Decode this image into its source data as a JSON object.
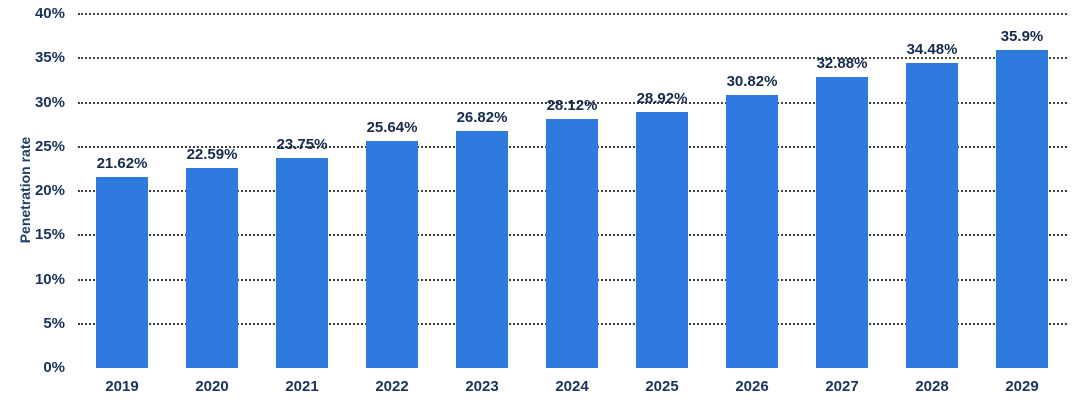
{
  "chart_data": {
    "type": "bar",
    "title": "",
    "xlabel": "",
    "ylabel": "Penetration rate",
    "categories": [
      "2019",
      "2020",
      "2021",
      "2022",
      "2023",
      "2024",
      "2025",
      "2026",
      "2027",
      "2028",
      "2029"
    ],
    "values": [
      21.62,
      22.59,
      23.75,
      25.64,
      26.82,
      28.12,
      28.92,
      30.82,
      32.88,
      34.48,
      35.9
    ],
    "data_labels": [
      "21.62%",
      "22.59%",
      "23.75%",
      "25.64%",
      "26.82%",
      "28.12%",
      "28.92%",
      "30.82%",
      "32.88%",
      "34.48%",
      "35.9%"
    ],
    "y_ticks": [
      "0%",
      "5%",
      "10%",
      "15%",
      "20%",
      "25%",
      "30%",
      "35%",
      "40%"
    ],
    "y_tick_values": [
      0,
      5,
      10,
      15,
      20,
      25,
      30,
      35,
      40
    ],
    "ylim": [
      0,
      40
    ],
    "grid": "horizontal-dotted",
    "legend_position": "none",
    "colors": {
      "bar": "#2e7ade",
      "data_label": "#152b4e",
      "tick_label": "#17335c",
      "axis_title": "#1d4067",
      "gridline": "#3f3f3f",
      "background": "#ffffff"
    }
  }
}
